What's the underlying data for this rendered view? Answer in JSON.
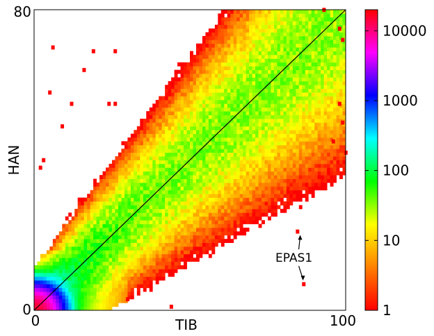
{
  "chart_data": {
    "type": "heatmap",
    "xlabel": "TIB",
    "ylabel": "HAN",
    "xlim": [
      0,
      100
    ],
    "ylim": [
      0,
      80
    ],
    "x_tick_labels": [
      "0",
      "100"
    ],
    "y_tick_labels": [
      "0",
      "80"
    ],
    "diagonal_line": true,
    "colorbar": {
      "scale": "log",
      "range": [
        1,
        20000
      ],
      "tick_labels": [
        "1",
        "10",
        "100",
        "1000",
        "10000"
      ],
      "tick_values": [
        1,
        10,
        100,
        1000,
        10000
      ],
      "colormap": [
        "#ff0000",
        "#ff8000",
        "#ffff00",
        "#00ff00",
        "#00ffff",
        "#0000ff",
        "#ff00ff",
        "#ff0000"
      ]
    },
    "annotation": {
      "text": "EPAS1",
      "points": [
        [
          84.5,
          21
        ],
        [
          86.5,
          7
        ]
      ]
    },
    "scattered_outliers": [
      [
        6,
        70
      ],
      [
        19,
        69
      ],
      [
        26,
        69
      ],
      [
        16,
        64
      ],
      [
        5,
        58
      ],
      [
        12,
        55
      ],
      [
        24,
        55
      ],
      [
        26,
        55
      ],
      [
        9,
        49
      ],
      [
        3,
        40
      ],
      [
        2,
        38
      ],
      [
        93,
        80
      ],
      [
        98,
        75
      ],
      [
        99,
        72
      ],
      [
        98,
        55
      ],
      [
        99,
        50
      ],
      [
        96,
        45
      ],
      [
        100,
        42
      ],
      [
        44,
        1
      ],
      [
        30,
        3
      ]
    ]
  }
}
